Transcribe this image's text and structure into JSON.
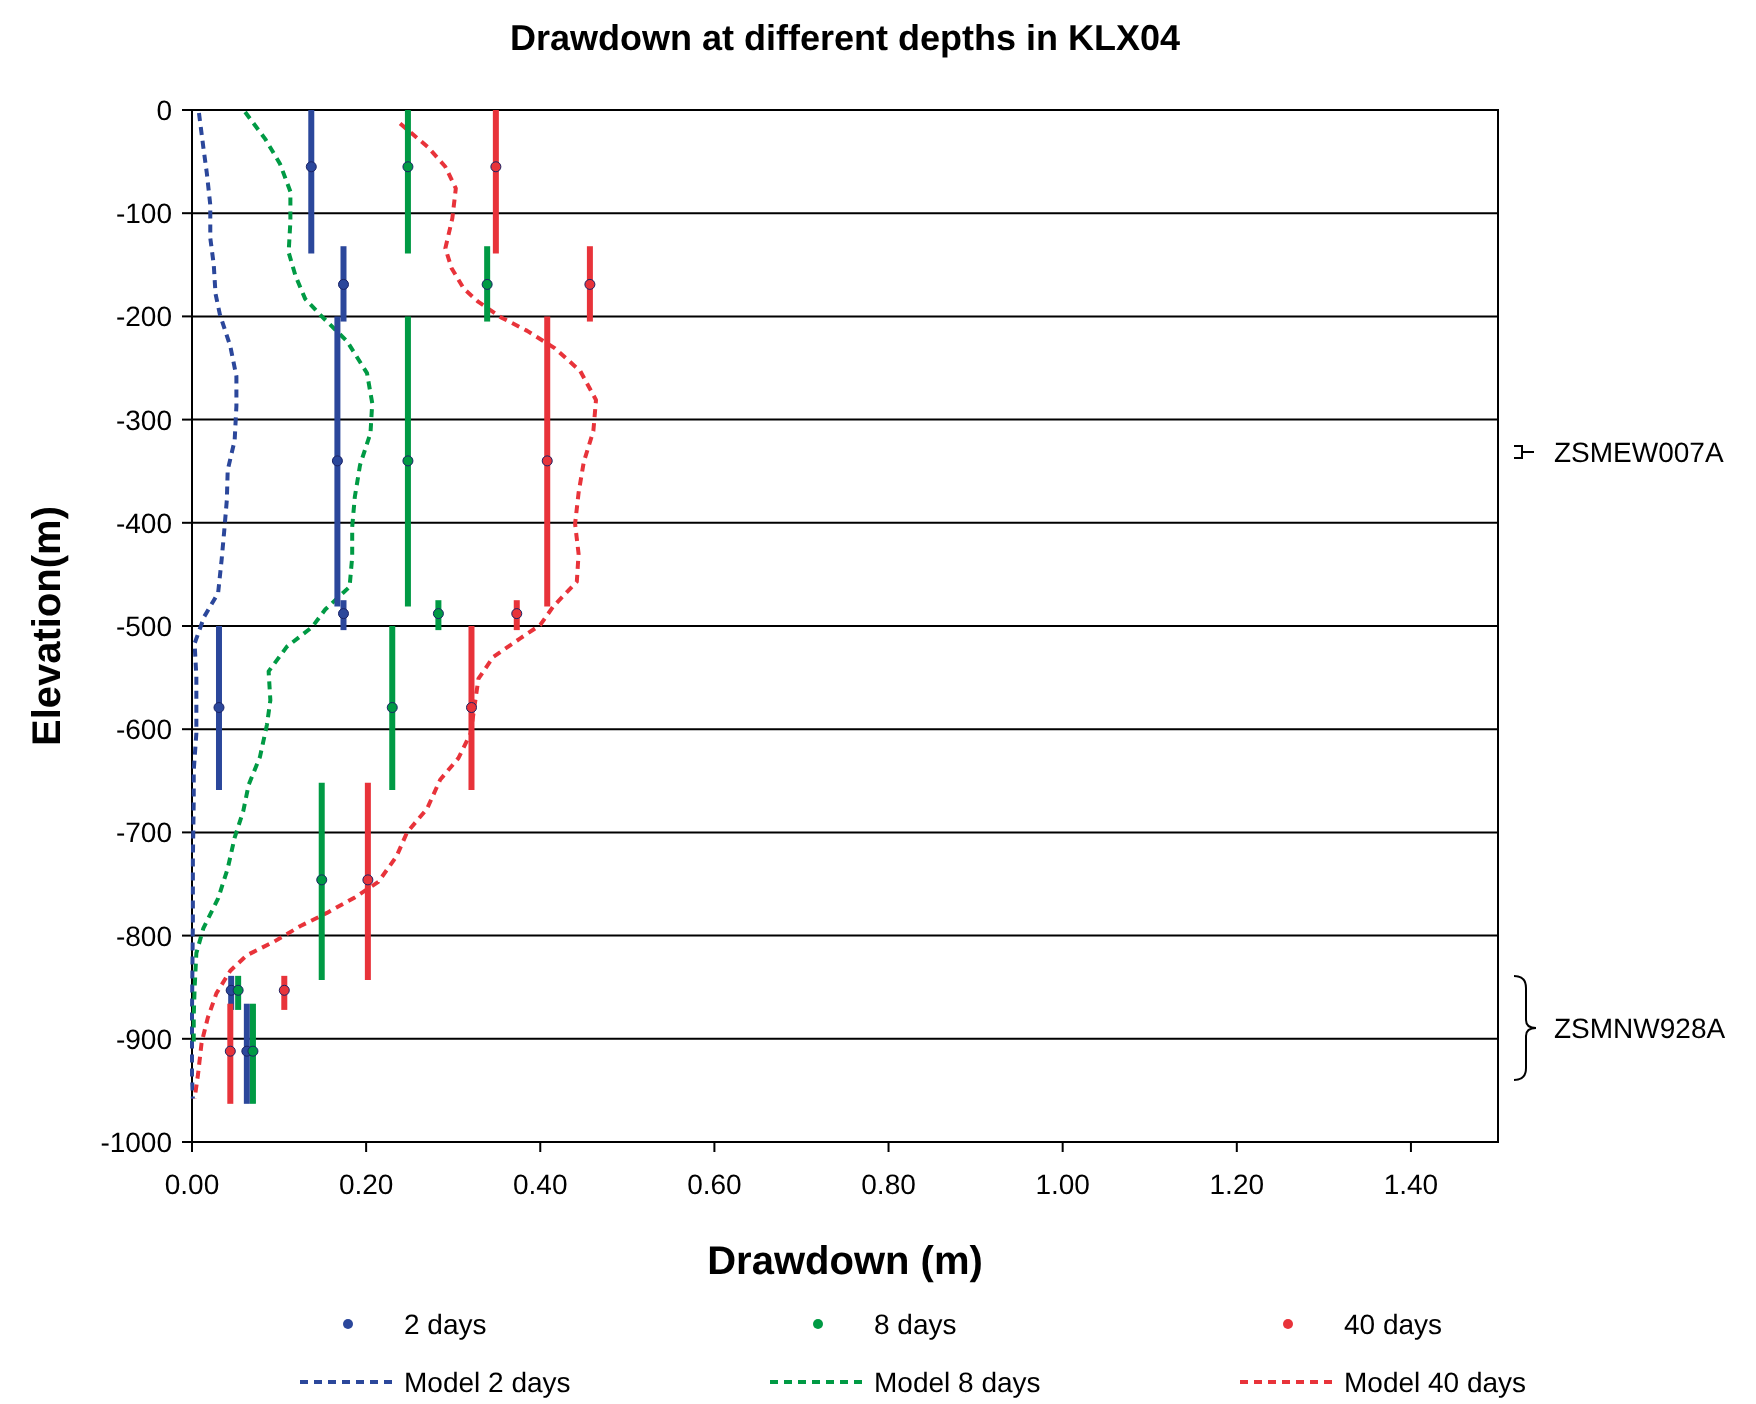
{
  "chart_data": {
    "type": "scatter",
    "title": "Drawdown at different depths in KLX04",
    "xlabel": "Drawdown (m)",
    "ylabel": "Elevation(m)",
    "xlim": [
      0,
      1.5
    ],
    "xticks": [
      {
        "value": 0,
        "label": "0.00"
      },
      {
        "value": 0.2,
        "label": "0.20"
      },
      {
        "value": 0.4,
        "label": "0.40"
      },
      {
        "value": 0.6,
        "label": "0.60"
      },
      {
        "value": 0.8,
        "label": "0.80"
      },
      {
        "value": 1,
        "label": "1.00"
      },
      {
        "value": 1.2,
        "label": "1.20"
      },
      {
        "value": 1.4,
        "label": "1.40"
      }
    ],
    "ylim": [
      -1000,
      0
    ],
    "yticks": [
      -1000,
      -900,
      -800,
      -700,
      -600,
      -500,
      -400,
      -300,
      -200,
      -100,
      0
    ],
    "grid": "y",
    "legend": "bottom",
    "series": [
      {
        "name": "2 days",
        "marker": "circle",
        "color": "#2b479b",
        "x": [
          0.137,
          0.174,
          0.167,
          0.174,
          0.031,
          0.045,
          0.063
        ],
        "values": [
          -55,
          -169,
          -340,
          -488,
          -579,
          -853,
          -912
        ],
        "errors": [
          [
            -139,
            0
          ],
          [
            -205,
            -132
          ],
          [
            -481,
            -200
          ],
          [
            -504,
            -475
          ],
          [
            -659,
            -500
          ],
          [
            -872,
            -839
          ],
          [
            -963,
            -866
          ]
        ]
      },
      {
        "name": "8 days",
        "marker": "circle",
        "color": "#009a44",
        "x": [
          0.248,
          0.339,
          0.248,
          0.283,
          0.23,
          0.149,
          0.053,
          0.07
        ],
        "values": [
          -55,
          -169,
          -340,
          -488,
          -579,
          -746,
          -853,
          -912
        ],
        "errors": [
          [
            -139,
            0
          ],
          [
            -205,
            -132
          ],
          [
            -481,
            -200
          ],
          [
            -504,
            -475
          ],
          [
            -659,
            -500
          ],
          [
            -843,
            -652
          ],
          [
            -872,
            -839
          ],
          [
            -963,
            -866
          ]
        ]
      },
      {
        "name": "40 days",
        "marker": "circle",
        "color": "#e8333a",
        "x": [
          0.349,
          0.457,
          0.408,
          0.373,
          0.321,
          0.202,
          0.106,
          0.044
        ],
        "values": [
          -55,
          -169,
          -340,
          -488,
          -579,
          -746,
          -853,
          -912
        ],
        "errors": [
          [
            -139,
            0
          ],
          [
            -205,
            -132
          ],
          [
            -481,
            -200
          ],
          [
            -504,
            -475
          ],
          [
            -659,
            -500
          ],
          [
            -843,
            -652
          ],
          [
            -872,
            -839
          ],
          [
            -963,
            -866
          ]
        ]
      },
      {
        "name": "Model 2 days",
        "type": "line",
        "line_style": "dashed",
        "color": "#2b479b",
        "x": [
          0.008,
          0.013,
          0.017,
          0.021,
          0.021,
          0.025,
          0.027,
          0.032,
          0.044,
          0.051,
          0.051,
          0.049,
          0.041,
          0.04,
          0.037,
          0.034,
          0.03,
          0.014,
          0.003,
          0.005,
          0.005,
          0.005,
          0.002,
          0.002,
          0.001,
          0.001,
          0.001,
          0,
          0,
          0.001
        ],
        "values": [
          -3,
          -36,
          -61,
          -92,
          -124,
          -150,
          -178,
          -198,
          -229,
          -258,
          -287,
          -320,
          -349,
          -378,
          -408,
          -436,
          -468,
          -491,
          -517,
          -549,
          -578,
          -604,
          -640,
          -669,
          -727,
          -759,
          -785,
          -875,
          -936,
          -958
        ]
      },
      {
        "name": "Model 8 days",
        "type": "line",
        "line_style": "dashed",
        "color": "#009a44",
        "x": [
          0.061,
          0.084,
          0.101,
          0.113,
          0.113,
          0.111,
          0.119,
          0.13,
          0.149,
          0.178,
          0.201,
          0.207,
          0.205,
          0.193,
          0.187,
          0.184,
          0.184,
          0.181,
          0.153,
          0.138,
          0.109,
          0.088,
          0.09,
          0.086,
          0.078,
          0.065,
          0.059,
          0.049,
          0.041,
          0.03,
          0.013,
          0.005,
          0.003,
          0.002,
          0.002
        ],
        "values": [
          -2,
          -28,
          -52,
          -79,
          -108,
          -138,
          -161,
          -183,
          -200,
          -224,
          -255,
          -284,
          -313,
          -344,
          -375,
          -404,
          -433,
          -462,
          -484,
          -501,
          -520,
          -544,
          -572,
          -596,
          -627,
          -654,
          -679,
          -705,
          -735,
          -764,
          -793,
          -817,
          -851,
          -878,
          -907
        ]
      },
      {
        "name": "Model 40 days",
        "type": "line",
        "line_style": "dashed",
        "color": "#e8333a",
        "x": [
          0.239,
          0.271,
          0.291,
          0.303,
          0.299,
          0.291,
          0.298,
          0.312,
          0.329,
          0.355,
          0.385,
          0.417,
          0.446,
          0.464,
          0.461,
          0.45,
          0.444,
          0.44,
          0.444,
          0.442,
          0.415,
          0.4,
          0.377,
          0.346,
          0.329,
          0.32,
          0.306,
          0.285,
          0.27,
          0.247,
          0.235,
          0.214,
          0.187,
          0.155,
          0.124,
          0.094,
          0.063,
          0.044,
          0.028,
          0.018,
          0.011,
          0.007,
          0.003
        ],
        "values": [
          -13,
          -36,
          -55,
          -76,
          -105,
          -134,
          -153,
          -173,
          -186,
          -201,
          -214,
          -231,
          -253,
          -281,
          -311,
          -341,
          -371,
          -401,
          -430,
          -457,
          -481,
          -499,
          -512,
          -530,
          -551,
          -604,
          -628,
          -649,
          -677,
          -700,
          -723,
          -748,
          -763,
          -778,
          -791,
          -806,
          -819,
          -834,
          -856,
          -880,
          -904,
          -934,
          -958
        ]
      }
    ],
    "annotations": [
      "ZSMEW007A",
      "ZSMNW928A"
    ]
  }
}
